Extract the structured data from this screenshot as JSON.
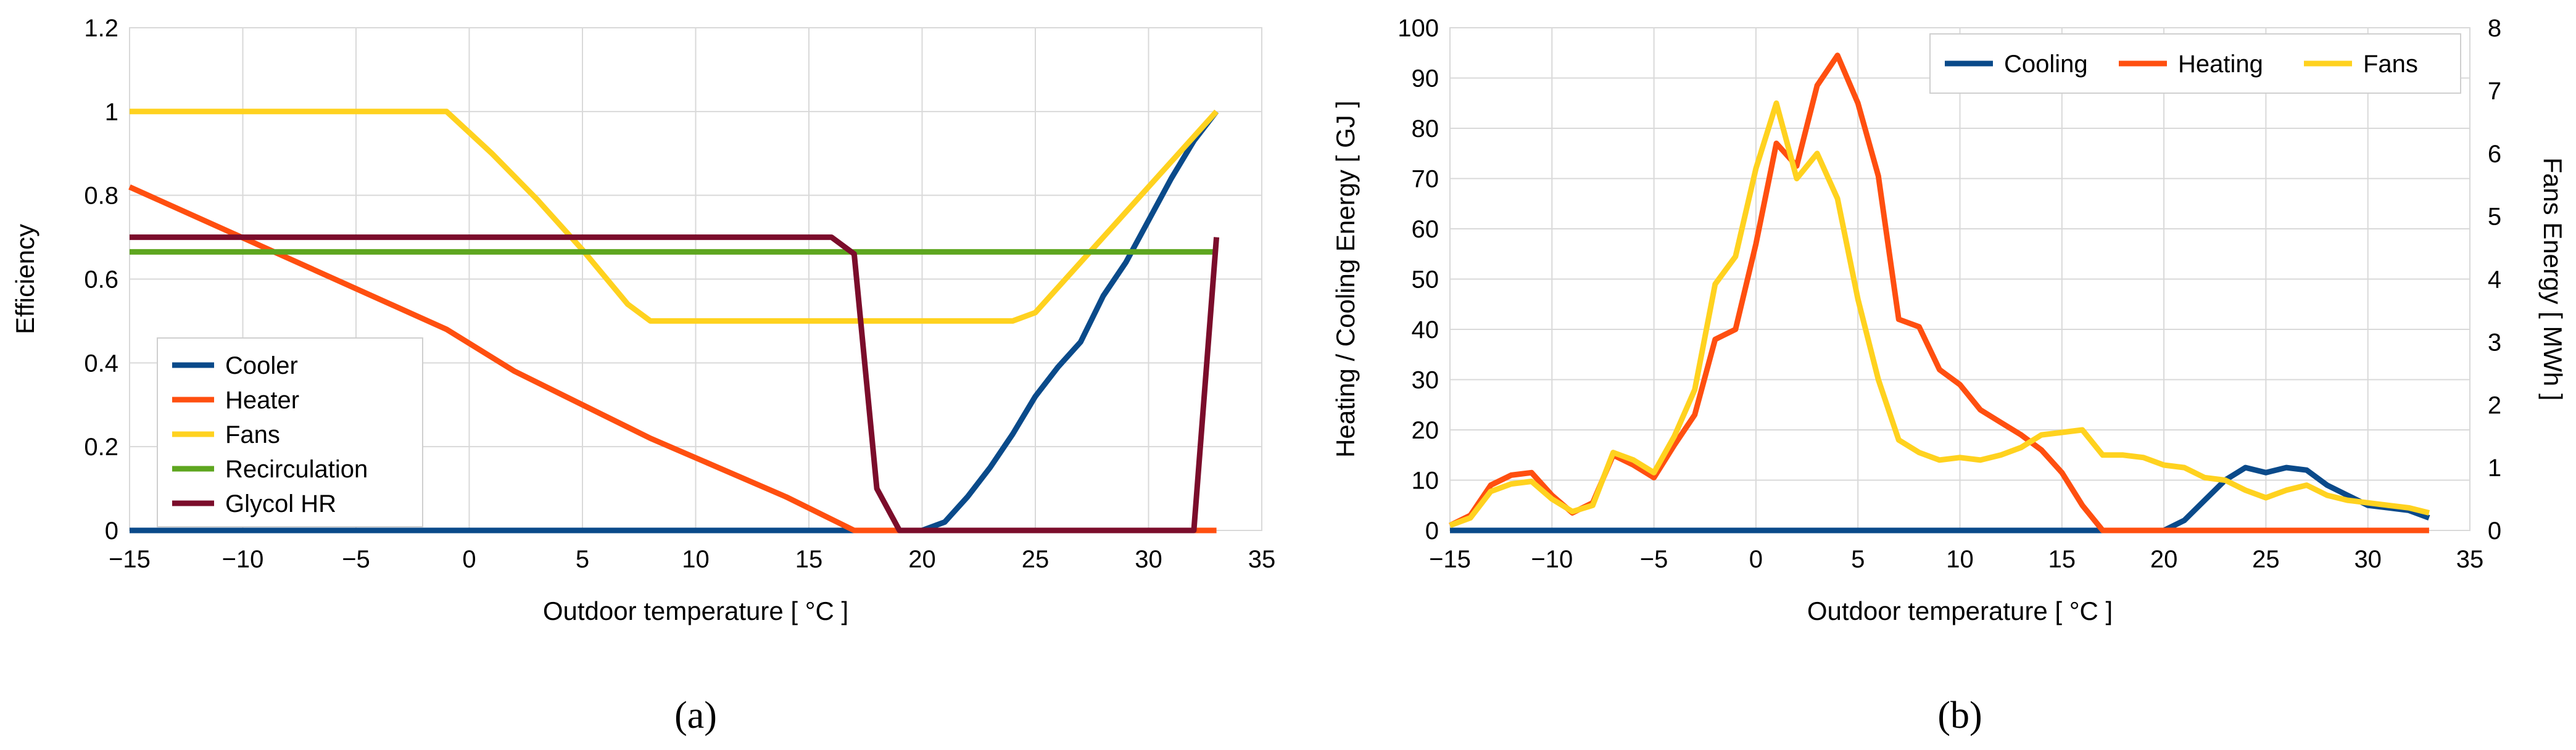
{
  "chart_data": [
    {
      "type": "line",
      "panel_label": "(a)",
      "xlabel": "Outdoor temperature [ °C ]",
      "ylabel": "Efficiency",
      "xlim": [
        -15,
        35
      ],
      "ylim": [
        0,
        1.2
      ],
      "xticks": [
        -15,
        -10,
        -5,
        0,
        5,
        10,
        15,
        20,
        25,
        30,
        35
      ],
      "yticks": [
        0,
        0.2,
        0.4,
        0.6,
        0.8,
        1,
        1.2
      ],
      "grid": true,
      "legend_position": "bottom-left",
      "series": [
        {
          "name": "Cooler",
          "color": "#0a4a8a",
          "x": [
            -15,
            20,
            21,
            22,
            23,
            24,
            25,
            26,
            27,
            28,
            29,
            30,
            31,
            32,
            33
          ],
          "y": [
            0,
            0,
            0.02,
            0.08,
            0.15,
            0.23,
            0.32,
            0.39,
            0.45,
            0.56,
            0.64,
            0.74,
            0.84,
            0.93,
            1.0
          ]
        },
        {
          "name": "Heater",
          "color": "#ff4f10",
          "x": [
            -15,
            -1,
            2,
            5,
            8,
            11,
            14,
            17,
            33
          ],
          "y": [
            0.82,
            0.48,
            0.38,
            0.3,
            0.22,
            0.15,
            0.08,
            0.0,
            0.0
          ]
        },
        {
          "name": "Fans",
          "color": "#ffd21f",
          "x": [
            -15,
            -1,
            1,
            3,
            5,
            7,
            8,
            10,
            20,
            24,
            25,
            27,
            29,
            31,
            33
          ],
          "y": [
            1.0,
            1.0,
            0.9,
            0.79,
            0.67,
            0.54,
            0.5,
            0.5,
            0.5,
            0.5,
            0.52,
            0.64,
            0.76,
            0.88,
            1.0
          ]
        },
        {
          "name": "Recirculation",
          "color": "#5ea61f",
          "x": [
            -15,
            33
          ],
          "y": [
            0.665,
            0.665
          ]
        },
        {
          "name": "Glycol HR",
          "color": "#7b0d2b",
          "x": [
            -15,
            16,
            17,
            18,
            19,
            32,
            33
          ],
          "y": [
            0.7,
            0.7,
            0.66,
            0.1,
            0.0,
            0.0,
            0.7
          ]
        }
      ]
    },
    {
      "type": "line",
      "panel_label": "(b)",
      "xlabel": "Outdoor temperature [ °C ]",
      "ylabel": "Heating / Cooling Energy [ GJ ]",
      "y2label": "Fans Energy [ MWh ]",
      "xlim": [
        -15,
        35
      ],
      "ylim": [
        0,
        100
      ],
      "y2lim": [
        0,
        8
      ],
      "xticks": [
        -15,
        -10,
        -5,
        0,
        5,
        10,
        15,
        20,
        25,
        30,
        35
      ],
      "yticks": [
        0,
        10,
        20,
        30,
        40,
        50,
        60,
        70,
        80,
        90,
        100
      ],
      "y2ticks": [
        0,
        1,
        2,
        3,
        4,
        5,
        6,
        7,
        8
      ],
      "grid": true,
      "legend_position": "top-right",
      "series": [
        {
          "name": "Cooling",
          "color": "#0a4a8a",
          "axis": "left",
          "x": [
            -15,
            20,
            21,
            22,
            23,
            24,
            25,
            26,
            27,
            28,
            29,
            30,
            31,
            32,
            33
          ],
          "y": [
            0,
            0,
            2,
            6,
            10,
            12.5,
            11.5,
            12.5,
            12,
            9,
            7,
            5,
            4.5,
            4,
            2.5
          ]
        },
        {
          "name": "Heating",
          "color": "#ff4f10",
          "axis": "left",
          "x": [
            -15,
            -14,
            -13,
            -12,
            -11,
            -10,
            -9,
            -8,
            -7,
            -6,
            -5,
            -4,
            -3,
            -2,
            -1,
            0,
            1,
            2,
            3,
            4,
            5,
            6,
            7,
            8,
            9,
            10,
            11,
            12,
            13,
            14,
            15,
            16,
            17,
            33
          ],
          "y": [
            1,
            3,
            9,
            11,
            11.5,
            7,
            3.5,
            5.5,
            15,
            13,
            10.5,
            17,
            23,
            38,
            40,
            57,
            77,
            72.5,
            88.5,
            94.5,
            85,
            70.5,
            42,
            40.5,
            32,
            29,
            24,
            21.5,
            19,
            16,
            11.5,
            5,
            0,
            0
          ]
        },
        {
          "name": "Fans",
          "color": "#ffd21f",
          "axis": "right",
          "x": [
            -15,
            -14,
            -13,
            -12,
            -11,
            -10,
            -9,
            -8,
            -7,
            -6,
            -5,
            -4,
            -3,
            -2,
            -1,
            0,
            1,
            2,
            3,
            4,
            5,
            6,
            7,
            8,
            9,
            10,
            11,
            12,
            13,
            14,
            15,
            16,
            17,
            18,
            19,
            20,
            21,
            22,
            23,
            24,
            25,
            26,
            27,
            28,
            29,
            30,
            31,
            32,
            33
          ],
          "y": [
            0.08,
            0.2,
            0.62,
            0.74,
            0.78,
            0.5,
            0.3,
            0.4,
            1.24,
            1.12,
            0.92,
            1.5,
            2.24,
            3.92,
            4.36,
            5.76,
            6.8,
            5.6,
            6.0,
            5.28,
            3.68,
            2.4,
            1.44,
            1.24,
            1.12,
            1.16,
            1.12,
            1.2,
            1.32,
            1.52,
            1.56,
            1.6,
            1.2,
            1.2,
            1.16,
            1.04,
            1.0,
            0.84,
            0.8,
            0.64,
            0.52,
            0.64,
            0.72,
            0.56,
            0.48,
            0.44,
            0.4,
            0.36,
            0.28
          ]
        }
      ]
    }
  ]
}
